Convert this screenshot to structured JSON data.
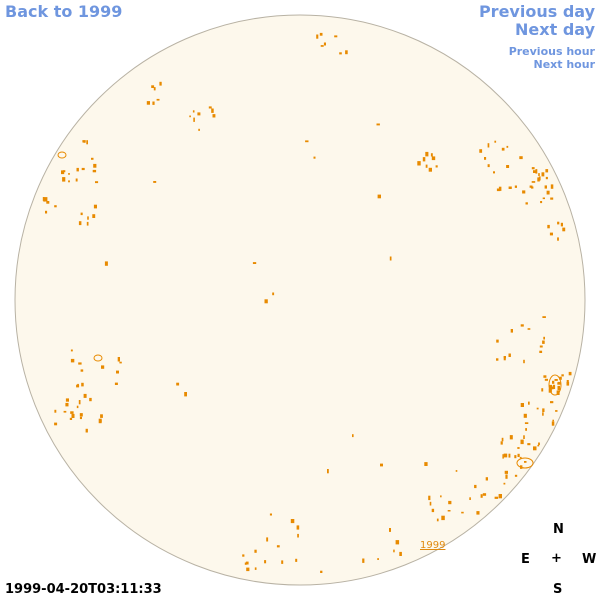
{
  "nav": {
    "back": "Back to 1999",
    "previous_day": "Previous day",
    "next_day": "Next day",
    "previous_hour": "Previous hour",
    "next_hour": "Next hour"
  },
  "timestamp": "1999-04-20T03:11:33",
  "compass": {
    "north": "N",
    "east": "E",
    "center": "+",
    "west": "W",
    "south": "S"
  },
  "region_label": "1999",
  "colors": {
    "link": "#6f96df",
    "disk_fill": "#fdf8ec",
    "disk_stroke": "#b8b2a4",
    "feature": "#e88a00"
  },
  "icons": {
    "disk": "solar-disk-icon",
    "feature": "sunspot-marker"
  }
}
